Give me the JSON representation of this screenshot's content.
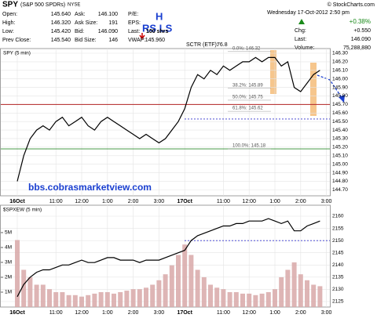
{
  "header": {
    "symbol": "SPY",
    "name": "(S&P 500 SPDRs)",
    "exchange": "NYSE",
    "credit": "© StockCharts.com",
    "fields": [
      {
        "label": "Open:",
        "value": "145.640"
      },
      {
        "label": "High:",
        "value": "146.320"
      },
      {
        "label": "Low:",
        "value": "145.420"
      },
      {
        "label": "Prev Close:",
        "value": "145.540"
      },
      {
        "label": "Ask:",
        "value": "146.100"
      },
      {
        "label": "Ask Size:",
        "value": "191"
      },
      {
        "label": "Bid:",
        "value": "146.090"
      },
      {
        "label": "Bid Size:",
        "value": "146"
      },
      {
        "label": "P/E:",
        "value": ""
      },
      {
        "label": "EPS:",
        "value": ""
      },
      {
        "label": "Last:",
        "value": "100 shrs"
      },
      {
        "label": "VWAP:",
        "value": "145.960"
      }
    ],
    "sctr": "SCTR (ETF):",
    "sctr_value": "76.8",
    "date": "Wednesday 17-Oct-2012 2:50 pm",
    "pct_change": "+0.38%",
    "right_fields": [
      {
        "label": "Chg:",
        "value": "+0.550"
      },
      {
        "label": "Last:",
        "value": "146.090"
      },
      {
        "label": "Volume:",
        "value": "75,288,880"
      }
    ],
    "pattern_h": "H",
    "pattern_rs_ls": "RS LS"
  },
  "chart_data": [
    {
      "type": "line",
      "title": "SPY (5 min)",
      "color": "#000000",
      "annotation": "bbs.cobrasmarketview.com",
      "categories": [
        "16Oct",
        null,
        null,
        null,
        null,
        null,
        "11:00",
        null,
        null,
        null,
        "12:00",
        null,
        null,
        null,
        "1:00",
        null,
        null,
        null,
        "2:00",
        null,
        null,
        null,
        "3:00",
        null,
        null,
        null,
        "17Oct",
        null,
        null,
        null,
        null,
        null,
        "11:00",
        null,
        null,
        null,
        "12:00",
        null,
        null,
        null,
        "1:00",
        null,
        null,
        null,
        "2:00",
        null,
        null,
        null,
        "3:00"
      ],
      "values": [
        144.8,
        145.1,
        145.3,
        145.4,
        145.45,
        145.4,
        145.5,
        145.55,
        145.45,
        145.5,
        145.55,
        145.45,
        145.4,
        145.5,
        145.55,
        145.5,
        145.45,
        145.4,
        145.35,
        145.3,
        145.35,
        145.3,
        145.25,
        145.3,
        145.4,
        145.5,
        145.65,
        145.9,
        146.05,
        146.0,
        146.1,
        146.05,
        146.15,
        146.1,
        146.15,
        146.2,
        146.2,
        146.25,
        146.2,
        146.25,
        146.25,
        146.15,
        146.2,
        145.9,
        145.85,
        145.95,
        146.05,
        146.1,
        null
      ],
      "ylim": [
        144.63,
        146.355
      ],
      "yticks": [
        {
          "value": 144.7,
          "label": "144.70"
        },
        {
          "value": 144.8,
          "label": "144.80"
        },
        {
          "value": 144.9,
          "label": "144.90"
        },
        {
          "value": 145.0,
          "label": "145.00"
        },
        {
          "value": 145.1,
          "label": "145.10"
        },
        {
          "value": 145.2,
          "label": "145.20"
        },
        {
          "value": 145.3,
          "label": "145.30"
        },
        {
          "value": 145.4,
          "label": "145.40"
        },
        {
          "value": 145.5,
          "label": "145.50"
        },
        {
          "value": 145.6,
          "label": "145.60"
        },
        {
          "value": 145.7,
          "label": "145.70"
        },
        {
          "value": 145.8,
          "label": "145.80"
        },
        {
          "value": 145.9,
          "label": "145.90"
        },
        {
          "value": 146.0,
          "label": "146.00"
        },
        {
          "value": 146.1,
          "label": "146.10"
        },
        {
          "value": 146.2,
          "label": "146.20"
        },
        {
          "value": 146.3,
          "label": "146.30"
        }
      ],
      "grid": true,
      "hlines": [
        {
          "value": 145.7,
          "color": "#b22222",
          "dashed": false
        },
        {
          "value": 145.18,
          "color": "#2e8b2e",
          "dashed": false
        },
        {
          "value": 145.53,
          "color": "#3333cc",
          "dashed": true
        }
      ],
      "fib_levels": [
        {
          "label": "0.0%: 146.32",
          "value": 146.32
        },
        {
          "label": "38.2%: 145.89",
          "value": 145.89
        },
        {
          "label": "50.0%: 145.75",
          "value": 145.75
        },
        {
          "label": "61.8%: 145.62",
          "value": 145.62
        },
        {
          "label": "100.0%: 145.18",
          "value": 145.18
        }
      ]
    },
    {
      "type": "line",
      "title": "$SPXEW (5 min)",
      "color": "#000000",
      "categories": [
        "16Oct",
        null,
        null,
        null,
        null,
        null,
        "11:00",
        null,
        null,
        null,
        "12:00",
        null,
        null,
        null,
        "1:00",
        null,
        null,
        null,
        "2:00",
        null,
        null,
        null,
        "3:00",
        null,
        null,
        null,
        "17Oct",
        null,
        null,
        null,
        null,
        null,
        "11:00",
        null,
        null,
        null,
        "12:00",
        null,
        null,
        null,
        "1:00",
        null,
        null,
        null,
        "2:00",
        null,
        null,
        null,
        "3:00"
      ],
      "values": [
        2127,
        2132,
        2135,
        2137,
        2138,
        2138,
        2139,
        2140,
        2140,
        2141,
        2142,
        2141,
        2141,
        2142,
        2143,
        2143,
        2142,
        2142,
        2142,
        2141,
        2142,
        2142,
        2142,
        2143,
        2144,
        2145,
        2146,
        2150,
        2152,
        2153,
        2154,
        2155,
        2156,
        2156,
        2157,
        2157,
        2158,
        2158,
        2158,
        2159,
        2158,
        2157,
        2158,
        2154,
        2154,
        2156,
        2157,
        2158,
        null
      ],
      "ylim": [
        2122.75,
        2164.5
      ],
      "yticks": [
        2125,
        2130,
        2135,
        2140,
        2145,
        2150,
        2155,
        2160
      ],
      "volume_values": [
        4.5,
        2.5,
        2,
        1.5,
        1.5,
        1.2,
        1,
        1,
        0.8,
        0.8,
        0.7,
        0.8,
        0.9,
        1,
        1,
        0.9,
        1,
        1.1,
        1.2,
        1.2,
        1.3,
        1.5,
        1.8,
        2.2,
        2.8,
        3.5,
        4.2,
        3.5,
        2.5,
        2,
        1.5,
        1.3,
        1.2,
        1,
        1,
        0.9,
        0.9,
        0.8,
        0.9,
        1,
        1.2,
        2,
        2.5,
        3,
        2.2,
        1.8,
        1.5,
        1.4,
        null
      ],
      "volume_color": "#d8a8a8",
      "y2lim": [
        0,
        6.84
      ],
      "y2ticks": [
        {
          "value": 1,
          "label": "1M"
        },
        {
          "value": 2,
          "label": "2M"
        },
        {
          "value": 3,
          "label": "3M"
        },
        {
          "value": 4,
          "label": "4M"
        },
        {
          "value": 5,
          "label": "5M"
        }
      ],
      "grid": true,
      "hlines": [
        {
          "value": 2150,
          "color": "#3333cc",
          "dashed": true
        }
      ]
    }
  ]
}
